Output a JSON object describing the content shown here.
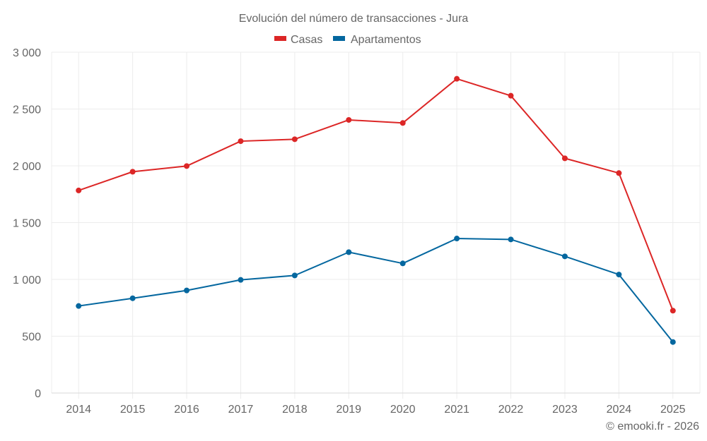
{
  "colors": {
    "casas": "#dc2626",
    "apartamentos": "#04679f"
  },
  "footer": "© emooki.fr - 2026",
  "chart_data": {
    "type": "line",
    "title": "Evolución del número de transacciones - Jura",
    "xlabel": "",
    "ylabel": "",
    "x": [
      "2014",
      "2015",
      "2016",
      "2017",
      "2018",
      "2019",
      "2020",
      "2021",
      "2022",
      "2023",
      "2024",
      "2025"
    ],
    "ylim": [
      0,
      3000
    ],
    "yticks": [
      0,
      500,
      1000,
      1500,
      2000,
      2500,
      3000
    ],
    "ytick_labels": [
      "0",
      "500",
      "1 000",
      "1 500",
      "2 000",
      "2 500",
      "3 000"
    ],
    "grid": true,
    "legend_position": "top-center",
    "series": [
      {
        "name": "Casas",
        "color": "#dc2626",
        "values": [
          1783,
          1948,
          1998,
          2217,
          2234,
          2404,
          2377,
          2766,
          2617,
          2066,
          1936,
          725
        ]
      },
      {
        "name": "Apartamentos",
        "color": "#04679f",
        "values": [
          766,
          834,
          903,
          996,
          1035,
          1240,
          1141,
          1360,
          1352,
          1203,
          1043,
          449
        ]
      }
    ]
  }
}
